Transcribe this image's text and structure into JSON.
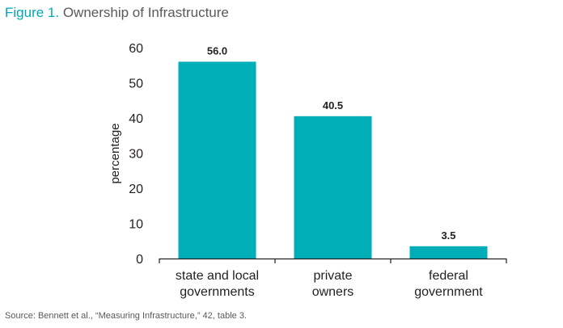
{
  "figure": {
    "number": "Figure 1.",
    "title": "Ownership of Infrastructure"
  },
  "source": "Source: Bennett et al., “Measuring Infrastructure,” 42, table 3.",
  "colors": {
    "bar": "#00aeb8",
    "title_number": "#00a9b5",
    "title_text": "#58595b",
    "axis": "#231f20"
  },
  "chart_data": {
    "type": "bar",
    "categories": [
      [
        "state and local",
        "governments"
      ],
      [
        "private",
        "owners"
      ],
      [
        "federal",
        "government"
      ]
    ],
    "values": [
      56.0,
      40.5,
      3.5
    ],
    "value_labels": [
      "56.0",
      "40.5",
      "3.5"
    ],
    "title": "Ownership of Infrastructure",
    "xlabel": "",
    "ylabel": "percentage",
    "ylim": [
      0,
      60
    ],
    "yticks": [
      0,
      10,
      20,
      30,
      40,
      50,
      60
    ],
    "grid": false,
    "legend": "none"
  }
}
